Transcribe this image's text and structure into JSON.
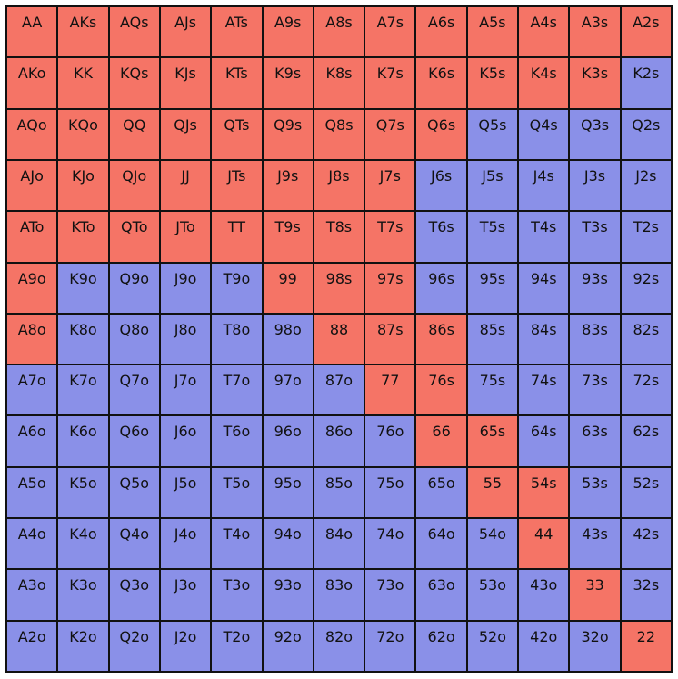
{
  "colors": {
    "raise": "#f57466",
    "fold": "#8a90e8",
    "border": "#111111"
  },
  "grid": {
    "rows": [
      {
        "cells": [
          {
            "label": "AA",
            "action": "raise"
          },
          {
            "label": "AKs",
            "action": "raise"
          },
          {
            "label": "AQs",
            "action": "raise"
          },
          {
            "label": "AJs",
            "action": "raise"
          },
          {
            "label": "ATs",
            "action": "raise"
          },
          {
            "label": "A9s",
            "action": "raise"
          },
          {
            "label": "A8s",
            "action": "raise"
          },
          {
            "label": "A7s",
            "action": "raise"
          },
          {
            "label": "A6s",
            "action": "raise"
          },
          {
            "label": "A5s",
            "action": "raise"
          },
          {
            "label": "A4s",
            "action": "raise"
          },
          {
            "label": "A3s",
            "action": "raise"
          },
          {
            "label": "A2s",
            "action": "raise"
          }
        ]
      },
      {
        "cells": [
          {
            "label": "AKo",
            "action": "raise"
          },
          {
            "label": "KK",
            "action": "raise"
          },
          {
            "label": "KQs",
            "action": "raise"
          },
          {
            "label": "KJs",
            "action": "raise"
          },
          {
            "label": "KTs",
            "action": "raise"
          },
          {
            "label": "K9s",
            "action": "raise"
          },
          {
            "label": "K8s",
            "action": "raise"
          },
          {
            "label": "K7s",
            "action": "raise"
          },
          {
            "label": "K6s",
            "action": "raise"
          },
          {
            "label": "K5s",
            "action": "raise"
          },
          {
            "label": "K4s",
            "action": "raise"
          },
          {
            "label": "K3s",
            "action": "raise"
          },
          {
            "label": "K2s",
            "action": "fold"
          }
        ]
      },
      {
        "cells": [
          {
            "label": "AQo",
            "action": "raise"
          },
          {
            "label": "KQo",
            "action": "raise"
          },
          {
            "label": "QQ",
            "action": "raise"
          },
          {
            "label": "QJs",
            "action": "raise"
          },
          {
            "label": "QTs",
            "action": "raise"
          },
          {
            "label": "Q9s",
            "action": "raise"
          },
          {
            "label": "Q8s",
            "action": "raise"
          },
          {
            "label": "Q7s",
            "action": "raise"
          },
          {
            "label": "Q6s",
            "action": "raise"
          },
          {
            "label": "Q5s",
            "action": "fold"
          },
          {
            "label": "Q4s",
            "action": "fold"
          },
          {
            "label": "Q3s",
            "action": "fold"
          },
          {
            "label": "Q2s",
            "action": "fold"
          }
        ]
      },
      {
        "cells": [
          {
            "label": "AJo",
            "action": "raise"
          },
          {
            "label": "KJo",
            "action": "raise"
          },
          {
            "label": "QJo",
            "action": "raise"
          },
          {
            "label": "JJ",
            "action": "raise"
          },
          {
            "label": "JTs",
            "action": "raise"
          },
          {
            "label": "J9s",
            "action": "raise"
          },
          {
            "label": "J8s",
            "action": "raise"
          },
          {
            "label": "J7s",
            "action": "raise"
          },
          {
            "label": "J6s",
            "action": "fold"
          },
          {
            "label": "J5s",
            "action": "fold"
          },
          {
            "label": "J4s",
            "action": "fold"
          },
          {
            "label": "J3s",
            "action": "fold"
          },
          {
            "label": "J2s",
            "action": "fold"
          }
        ]
      },
      {
        "cells": [
          {
            "label": "ATo",
            "action": "raise"
          },
          {
            "label": "KTo",
            "action": "raise"
          },
          {
            "label": "QTo",
            "action": "raise"
          },
          {
            "label": "JTo",
            "action": "raise"
          },
          {
            "label": "TT",
            "action": "raise"
          },
          {
            "label": "T9s",
            "action": "raise"
          },
          {
            "label": "T8s",
            "action": "raise"
          },
          {
            "label": "T7s",
            "action": "raise"
          },
          {
            "label": "T6s",
            "action": "fold"
          },
          {
            "label": "T5s",
            "action": "fold"
          },
          {
            "label": "T4s",
            "action": "fold"
          },
          {
            "label": "T3s",
            "action": "fold"
          },
          {
            "label": "T2s",
            "action": "fold"
          }
        ]
      },
      {
        "cells": [
          {
            "label": "A9o",
            "action": "raise"
          },
          {
            "label": "K9o",
            "action": "fold"
          },
          {
            "label": "Q9o",
            "action": "fold"
          },
          {
            "label": "J9o",
            "action": "fold"
          },
          {
            "label": "T9o",
            "action": "fold"
          },
          {
            "label": "99",
            "action": "raise"
          },
          {
            "label": "98s",
            "action": "raise"
          },
          {
            "label": "97s",
            "action": "raise"
          },
          {
            "label": "96s",
            "action": "fold"
          },
          {
            "label": "95s",
            "action": "fold"
          },
          {
            "label": "94s",
            "action": "fold"
          },
          {
            "label": "93s",
            "action": "fold"
          },
          {
            "label": "92s",
            "action": "fold"
          }
        ]
      },
      {
        "cells": [
          {
            "label": "A8o",
            "action": "raise"
          },
          {
            "label": "K8o",
            "action": "fold"
          },
          {
            "label": "Q8o",
            "action": "fold"
          },
          {
            "label": "J8o",
            "action": "fold"
          },
          {
            "label": "T8o",
            "action": "fold"
          },
          {
            "label": "98o",
            "action": "fold"
          },
          {
            "label": "88",
            "action": "raise"
          },
          {
            "label": "87s",
            "action": "raise"
          },
          {
            "label": "86s",
            "action": "raise"
          },
          {
            "label": "85s",
            "action": "fold"
          },
          {
            "label": "84s",
            "action": "fold"
          },
          {
            "label": "83s",
            "action": "fold"
          },
          {
            "label": "82s",
            "action": "fold"
          }
        ]
      },
      {
        "cells": [
          {
            "label": "A7o",
            "action": "fold"
          },
          {
            "label": "K7o",
            "action": "fold"
          },
          {
            "label": "Q7o",
            "action": "fold"
          },
          {
            "label": "J7o",
            "action": "fold"
          },
          {
            "label": "T7o",
            "action": "fold"
          },
          {
            "label": "97o",
            "action": "fold"
          },
          {
            "label": "87o",
            "action": "fold"
          },
          {
            "label": "77",
            "action": "raise"
          },
          {
            "label": "76s",
            "action": "raise"
          },
          {
            "label": "75s",
            "action": "fold"
          },
          {
            "label": "74s",
            "action": "fold"
          },
          {
            "label": "73s",
            "action": "fold"
          },
          {
            "label": "72s",
            "action": "fold"
          }
        ]
      },
      {
        "cells": [
          {
            "label": "A6o",
            "action": "fold"
          },
          {
            "label": "K6o",
            "action": "fold"
          },
          {
            "label": "Q6o",
            "action": "fold"
          },
          {
            "label": "J6o",
            "action": "fold"
          },
          {
            "label": "T6o",
            "action": "fold"
          },
          {
            "label": "96o",
            "action": "fold"
          },
          {
            "label": "86o",
            "action": "fold"
          },
          {
            "label": "76o",
            "action": "fold"
          },
          {
            "label": "66",
            "action": "raise"
          },
          {
            "label": "65s",
            "action": "raise"
          },
          {
            "label": "64s",
            "action": "fold"
          },
          {
            "label": "63s",
            "action": "fold"
          },
          {
            "label": "62s",
            "action": "fold"
          }
        ]
      },
      {
        "cells": [
          {
            "label": "A5o",
            "action": "fold"
          },
          {
            "label": "K5o",
            "action": "fold"
          },
          {
            "label": "Q5o",
            "action": "fold"
          },
          {
            "label": "J5o",
            "action": "fold"
          },
          {
            "label": "T5o",
            "action": "fold"
          },
          {
            "label": "95o",
            "action": "fold"
          },
          {
            "label": "85o",
            "action": "fold"
          },
          {
            "label": "75o",
            "action": "fold"
          },
          {
            "label": "65o",
            "action": "fold"
          },
          {
            "label": "55",
            "action": "raise"
          },
          {
            "label": "54s",
            "action": "raise"
          },
          {
            "label": "53s",
            "action": "fold"
          },
          {
            "label": "52s",
            "action": "fold"
          }
        ]
      },
      {
        "cells": [
          {
            "label": "A4o",
            "action": "fold"
          },
          {
            "label": "K4o",
            "action": "fold"
          },
          {
            "label": "Q4o",
            "action": "fold"
          },
          {
            "label": "J4o",
            "action": "fold"
          },
          {
            "label": "T4o",
            "action": "fold"
          },
          {
            "label": "94o",
            "action": "fold"
          },
          {
            "label": "84o",
            "action": "fold"
          },
          {
            "label": "74o",
            "action": "fold"
          },
          {
            "label": "64o",
            "action": "fold"
          },
          {
            "label": "54o",
            "action": "fold"
          },
          {
            "label": "44",
            "action": "raise"
          },
          {
            "label": "43s",
            "action": "fold"
          },
          {
            "label": "42s",
            "action": "fold"
          }
        ]
      },
      {
        "cells": [
          {
            "label": "A3o",
            "action": "fold"
          },
          {
            "label": "K3o",
            "action": "fold"
          },
          {
            "label": "Q3o",
            "action": "fold"
          },
          {
            "label": "J3o",
            "action": "fold"
          },
          {
            "label": "T3o",
            "action": "fold"
          },
          {
            "label": "93o",
            "action": "fold"
          },
          {
            "label": "83o",
            "action": "fold"
          },
          {
            "label": "73o",
            "action": "fold"
          },
          {
            "label": "63o",
            "action": "fold"
          },
          {
            "label": "53o",
            "action": "fold"
          },
          {
            "label": "43o",
            "action": "fold"
          },
          {
            "label": "33",
            "action": "raise"
          },
          {
            "label": "32s",
            "action": "fold"
          }
        ]
      },
      {
        "cells": [
          {
            "label": "A2o",
            "action": "fold"
          },
          {
            "label": "K2o",
            "action": "fold"
          },
          {
            "label": "Q2o",
            "action": "fold"
          },
          {
            "label": "J2o",
            "action": "fold"
          },
          {
            "label": "T2o",
            "action": "fold"
          },
          {
            "label": "92o",
            "action": "fold"
          },
          {
            "label": "82o",
            "action": "fold"
          },
          {
            "label": "72o",
            "action": "fold"
          },
          {
            "label": "62o",
            "action": "fold"
          },
          {
            "label": "52o",
            "action": "fold"
          },
          {
            "label": "42o",
            "action": "fold"
          },
          {
            "label": "32o",
            "action": "fold"
          },
          {
            "label": "22",
            "action": "raise"
          }
        ]
      }
    ]
  }
}
